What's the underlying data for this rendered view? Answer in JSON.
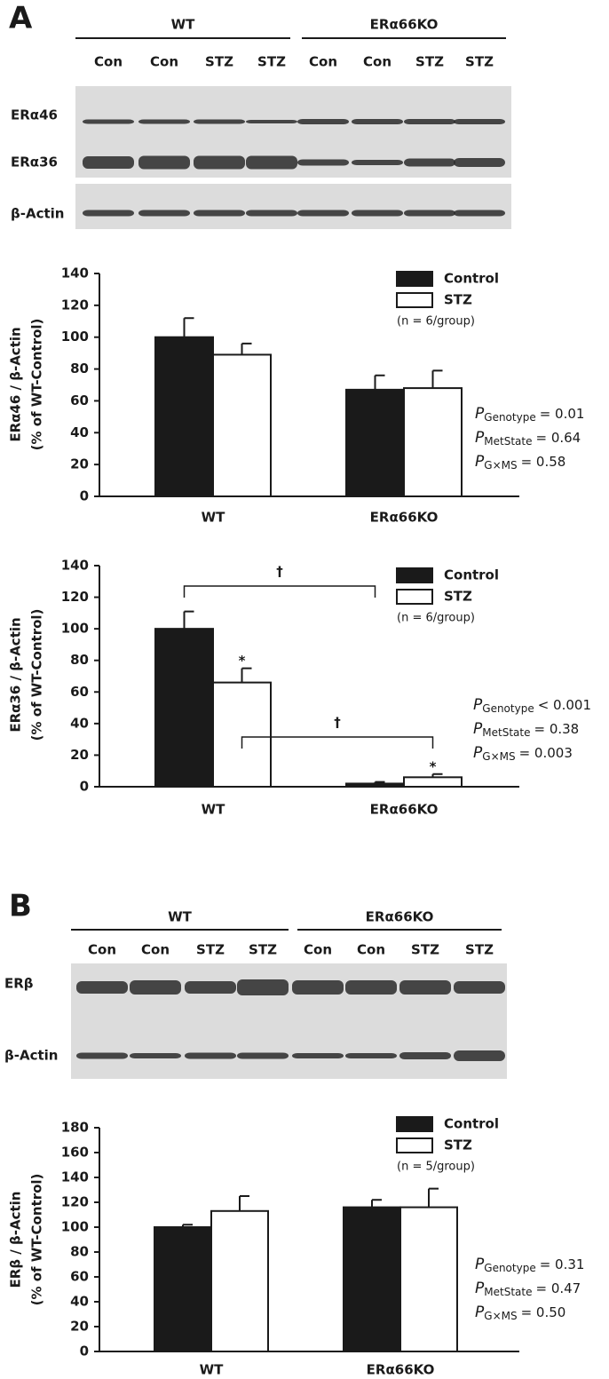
{
  "blots": [
    {
      "panel_label": "A",
      "groups": [
        "WT",
        "ERα66KO"
      ],
      "lanes": [
        "Con",
        "Con",
        "STZ",
        "STZ",
        "Con",
        "Con",
        "STZ",
        "STZ"
      ],
      "bands": [
        "ERα46",
        "ERα36",
        "β-Actin"
      ]
    },
    {
      "panel_label": "B",
      "groups": [
        "WT",
        "ERα66KO"
      ],
      "lanes": [
        "Con",
        "Con",
        "STZ",
        "STZ",
        "Con",
        "Con",
        "STZ",
        "STZ"
      ],
      "bands": [
        "ERβ",
        "β-Actin"
      ]
    }
  ],
  "chart_data": [
    {
      "type": "bar",
      "y_label": [
        "ERα46 / β-Actin",
        "(% of WT-Control)"
      ],
      "categories": [
        "WT",
        "ERα66KO"
      ],
      "series": [
        {
          "name": "Control",
          "color": "#1a1a1a",
          "values": [
            100,
            67
          ],
          "errors": [
            12,
            9
          ]
        },
        {
          "name": "STZ",
          "color": "#ffffff",
          "values": [
            89,
            68
          ],
          "errors": [
            7,
            11
          ]
        }
      ],
      "legend_note": "(n = 6/group)",
      "ylim": [
        0,
        140
      ],
      "yticks": [
        0,
        20,
        40,
        60,
        80,
        100,
        120,
        140
      ],
      "stats": [
        {
          "symbol": "P",
          "subscript": "Genotype",
          "text": "= 0.01"
        },
        {
          "symbol": "P",
          "subscript": "MetState",
          "text": "= 0.64"
        },
        {
          "symbol": "P",
          "subscript": "G×MS",
          "text": "= 0.58"
        }
      ]
    },
    {
      "type": "bar",
      "y_label": [
        "ERα36 / β-Actin",
        "(% of WT-Control)"
      ],
      "categories": [
        "WT",
        "ERα66KO"
      ],
      "series": [
        {
          "name": "Control",
          "color": "#1a1a1a",
          "values": [
            100,
            2
          ],
          "errors": [
            11,
            1
          ]
        },
        {
          "name": "STZ",
          "color": "#ffffff",
          "values": [
            66,
            6
          ],
          "errors": [
            9,
            2
          ]
        }
      ],
      "legend_note": "(n = 6/group)",
      "ylim": [
        0,
        140
      ],
      "yticks": [
        0,
        20,
        40,
        60,
        80,
        100,
        120,
        140
      ],
      "brackets": [
        "†",
        "†"
      ],
      "markers": [
        "*",
        "*"
      ],
      "stats": [
        {
          "symbol": "P",
          "subscript": "Genotype",
          "text": "< 0.001"
        },
        {
          "symbol": "P",
          "subscript": "MetState",
          "text": "= 0.38"
        },
        {
          "symbol": "P",
          "subscript": "G×MS",
          "text": "= 0.003"
        }
      ]
    },
    {
      "type": "bar",
      "y_label": [
        "ERβ / β-Actin",
        "(% of WT-Control)"
      ],
      "categories": [
        "WT",
        "ERα66KO"
      ],
      "series": [
        {
          "name": "Control",
          "color": "#1a1a1a",
          "values": [
            100,
            116
          ],
          "errors": [
            2,
            6
          ]
        },
        {
          "name": "STZ",
          "color": "#ffffff",
          "values": [
            113,
            116
          ],
          "errors": [
            12,
            15
          ]
        }
      ],
      "legend_note": "(n = 5/group)",
      "ylim": [
        0,
        180
      ],
      "yticks": [
        0,
        20,
        40,
        60,
        80,
        100,
        120,
        140,
        160,
        180
      ],
      "stats": [
        {
          "symbol": "P",
          "subscript": "Genotype",
          "text": "= 0.31"
        },
        {
          "symbol": "P",
          "subscript": "MetState",
          "text": "= 0.47"
        },
        {
          "symbol": "P",
          "subscript": "G×MS",
          "text": "= 0.50"
        }
      ]
    }
  ]
}
